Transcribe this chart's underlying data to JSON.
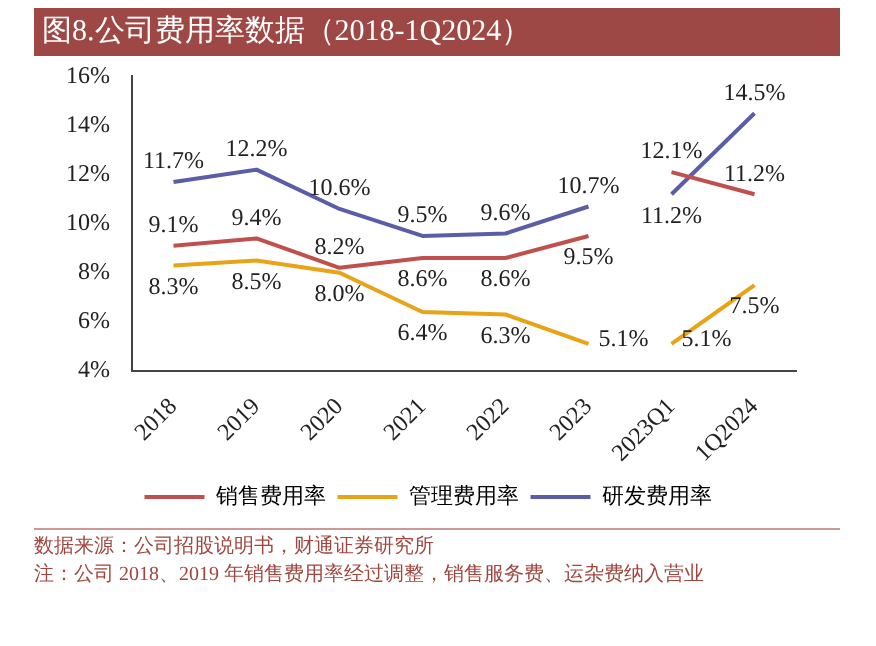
{
  "chart_data": {
    "type": "line",
    "title": "图8.公司费用率数据（2018-1Q2024）",
    "categories": [
      "2018",
      "2019",
      "2020",
      "2021",
      "2022",
      "2023",
      "2023Q1",
      "1Q2024"
    ],
    "series": [
      {
        "name": "销售费用率",
        "color": "#c0504d",
        "values": [
          9.1,
          9.4,
          8.2,
          8.6,
          8.6,
          9.5,
          null,
          null
        ],
        "value_labels": [
          "9.1%",
          "9.4%",
          "8.2%",
          "8.6%",
          "8.6%",
          "9.5%",
          null,
          null
        ]
      },
      {
        "name": "管理费用率",
        "color": "#e8a317",
        "values": [
          8.3,
          8.5,
          8.0,
          6.4,
          6.3,
          5.1,
          null,
          null
        ],
        "value_labels": [
          "8.3%",
          "8.5%",
          "8.0%",
          "6.4%",
          "6.3%",
          "5.1%",
          null,
          null
        ]
      },
      {
        "name": "研发费用率",
        "color": "#5b5ea6",
        "values": [
          11.7,
          12.2,
          10.6,
          9.5,
          9.6,
          10.7,
          null,
          null
        ],
        "value_labels": [
          "11.7%",
          "12.2%",
          "10.6%",
          "9.5%",
          "9.6%",
          "10.7%",
          null,
          null
        ]
      },
      {
        "color": "#c0504d",
        "values": [
          null,
          null,
          null,
          null,
          null,
          null,
          12.1,
          11.2
        ],
        "value_labels": [
          null,
          null,
          null,
          null,
          null,
          null,
          "12.1%",
          "11.2%"
        ]
      },
      {
        "color": "#e8a317",
        "values": [
          null,
          null,
          null,
          null,
          null,
          null,
          5.1,
          7.5
        ],
        "value_labels": [
          null,
          null,
          null,
          null,
          null,
          null,
          "5.1%",
          "7.5%"
        ]
      },
      {
        "color": "#5b5ea6",
        "values": [
          null,
          null,
          null,
          null,
          null,
          null,
          11.2,
          14.5
        ],
        "value_labels": [
          null,
          null,
          null,
          null,
          null,
          null,
          "11.2%",
          "14.5%"
        ]
      }
    ],
    "ylim": [
      4,
      16
    ],
    "yticks": [
      {
        "value": 4,
        "label": "4%"
      },
      {
        "value": 6,
        "label": "6%"
      },
      {
        "value": 8,
        "label": "8%"
      },
      {
        "value": 10,
        "label": "10%"
      },
      {
        "value": 12,
        "label": "12%"
      },
      {
        "value": 14,
        "label": "14%"
      },
      {
        "value": 16,
        "label": "16%"
      }
    ],
    "grid": false,
    "legend": "bottom",
    "marker": "none",
    "line_style": "solid",
    "annotations": [
      "数据来源：公司招股说明书，财通证券研究所",
      "注：公司 2018、2019 年销售费用率经过调整，销售服务费、运杂费纳入营业"
    ]
  }
}
